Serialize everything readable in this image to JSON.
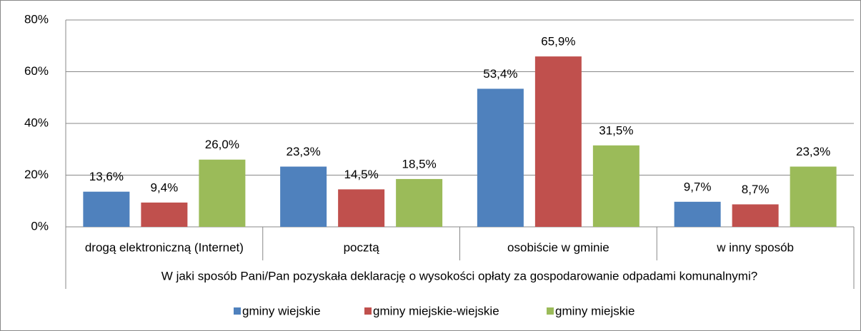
{
  "chart_data": {
    "type": "bar",
    "x_label": "W jaki sposób Pani/Pan pozyskała deklarację o wysokości opłaty za gospodarowanie odpadami komunalnymi?",
    "categories": [
      "drogą elektroniczną (Internet)",
      "pocztą",
      "osobiście w gminie",
      "w inny sposób"
    ],
    "series": [
      {
        "name": "gminy wiejskie",
        "color": "#4f81bd",
        "values": [
          13.6,
          23.3,
          53.4,
          9.7
        ],
        "value_labels": [
          "13,6%",
          "23,3%",
          "53,4%",
          "9,7%"
        ]
      },
      {
        "name": "gminy miejskie-wiejskie",
        "color": "#c0504d",
        "values": [
          9.4,
          14.5,
          65.9,
          8.7
        ],
        "value_labels": [
          "9,4%",
          "14,5%",
          "65,9%",
          "8,7%"
        ]
      },
      {
        "name": "gminy miejskie",
        "color": "#9bbb59",
        "values": [
          26.0,
          18.5,
          31.5,
          23.3
        ],
        "value_labels": [
          "26,0%",
          "18,5%",
          "31,5%",
          "23,3%"
        ]
      }
    ],
    "ylim": [
      0,
      80
    ],
    "yticks": [
      {
        "value": 0,
        "label": "0%"
      },
      {
        "value": 20,
        "label": "20%"
      },
      {
        "value": 40,
        "label": "40%"
      },
      {
        "value": 60,
        "label": "60%"
      },
      {
        "value": 80,
        "label": "80%"
      }
    ],
    "grid": true,
    "legend": "bottom"
  }
}
